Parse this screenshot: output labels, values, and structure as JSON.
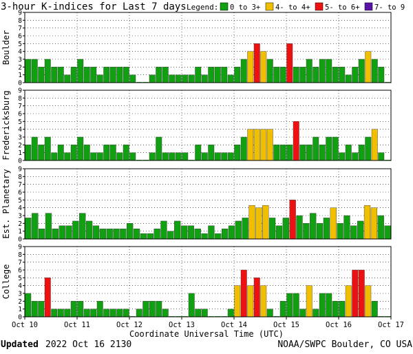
{
  "chart_data": {
    "type": "bar",
    "title": "3-hour K-indices for Last 7 days",
    "legend": {
      "label": "Legend:",
      "placement": "top-right",
      "items": [
        {
          "label": "0 to 3+",
          "color": "#11a011"
        },
        {
          "label": "4- to 4+",
          "color": "#f0c000"
        },
        {
          "label": "5- to 6+",
          "color": "#ee1111"
        },
        {
          "label": "7- to 9",
          "color": "#5a13a6"
        }
      ]
    },
    "xlabel": "Coordinate Universal Time (UTC)",
    "x_ticks": [
      "Oct 10",
      "Oct 11",
      "Oct 12",
      "Oct 13",
      "Oct 14",
      "Oct 15",
      "Oct 16",
      "Oct 17"
    ],
    "ylim": [
      0,
      9
    ],
    "y_ticks": [
      "0",
      "1",
      "2",
      "3",
      "4",
      "5",
      "6",
      "7",
      "8",
      "9"
    ],
    "grid": true,
    "panels": [
      {
        "name": "Boulder",
        "values": [
          3,
          3,
          2,
          3,
          2,
          2,
          1,
          2,
          3,
          2,
          2,
          1,
          2,
          2,
          2,
          2,
          1,
          0,
          0,
          1,
          2,
          2,
          1,
          1,
          1,
          1,
          2,
          1,
          2,
          2,
          2,
          1,
          2,
          3,
          4,
          5,
          4,
          3,
          2,
          2,
          5,
          2,
          2,
          3,
          2,
          3,
          3,
          2,
          2,
          1,
          2,
          3,
          4,
          3,
          2,
          0
        ]
      },
      {
        "name": "Fredericksburg",
        "values": [
          2,
          3,
          2,
          3,
          1,
          2,
          1,
          2,
          3,
          2,
          1,
          1,
          2,
          2,
          1,
          2,
          1,
          0,
          0,
          1,
          3,
          1,
          1,
          1,
          1,
          0,
          2,
          1,
          2,
          1,
          1,
          1,
          2,
          3,
          4,
          4,
          4,
          4,
          2,
          2,
          2,
          5,
          2,
          2,
          3,
          2,
          3,
          3,
          1,
          2,
          1,
          2,
          3,
          4,
          1,
          0
        ]
      },
      {
        "name": "Est. Planetary",
        "values": [
          2.7,
          3.3,
          1.3,
          3.3,
          1.3,
          1.7,
          1.7,
          2.3,
          3.3,
          2.3,
          1.7,
          1.3,
          1.3,
          1.3,
          1.3,
          2,
          1.3,
          0.7,
          0.7,
          1.3,
          2.3,
          1,
          2.3,
          1.7,
          1.7,
          1.3,
          0.7,
          1.7,
          0.7,
          1.3,
          1.7,
          2.3,
          2.7,
          4.3,
          4,
          4.3,
          2.7,
          1.7,
          2.7,
          5,
          3,
          2,
          3.3,
          2,
          2.7,
          4,
          2,
          3,
          1.7,
          2.3,
          4.3,
          4,
          3,
          1.7
        ]
      },
      {
        "name": "College",
        "values": [
          3,
          2,
          2,
          5,
          1,
          1,
          1,
          2,
          2,
          1,
          1,
          2,
          1,
          1,
          1,
          1,
          0,
          1,
          2,
          2,
          2,
          1,
          0,
          0,
          0,
          3,
          1,
          1,
          0,
          0,
          0,
          1,
          4,
          6,
          4,
          5,
          4,
          1,
          0,
          2,
          3,
          3,
          1,
          4,
          1,
          3,
          3,
          2,
          2,
          4,
          6,
          6,
          4,
          2,
          0,
          0
        ]
      }
    ]
  },
  "footer": {
    "updated_label": "Updated",
    "updated_value": "2022 Oct 16 2130",
    "credit": "NOAA/SWPC Boulder, CO USA"
  }
}
